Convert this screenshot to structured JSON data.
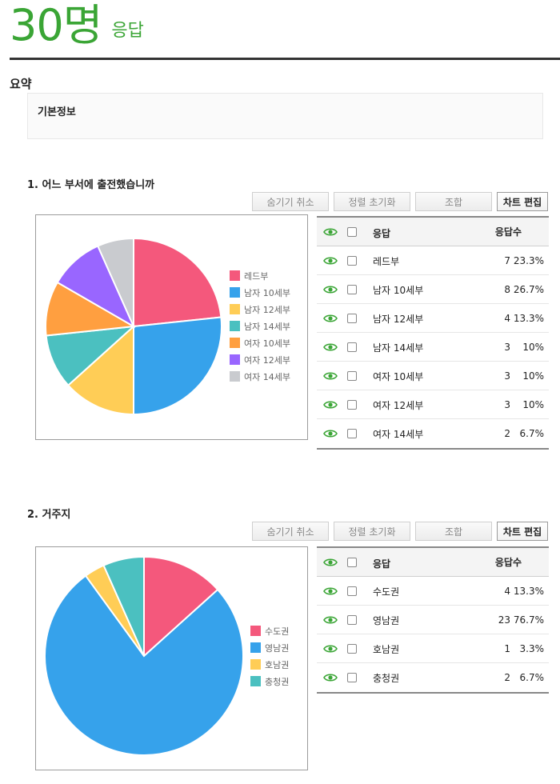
{
  "header": {
    "count": "30명",
    "unit": "응답"
  },
  "summary": {
    "title": "요약",
    "box_label": "기본정보"
  },
  "buttons": {
    "unhide": "숨기기 취소",
    "reset_sort": "정렬 초기화",
    "combine": "조합",
    "edit_chart": "차트 편집"
  },
  "table_headers": {
    "response": "응답",
    "count": "응답수"
  },
  "colors": {
    "accent": "#3aa535"
  },
  "questions": [
    {
      "title": "1. 어느 부서에 출전했습니까",
      "rows": [
        {
          "label": "레드부",
          "count": "7",
          "pct": "23.3%"
        },
        {
          "label": "남자 10세부",
          "count": "8",
          "pct": "26.7%"
        },
        {
          "label": "남자 12세부",
          "count": "4",
          "pct": "13.3%"
        },
        {
          "label": "남자 14세부",
          "count": "3",
          "pct": "10%"
        },
        {
          "label": "여자 10세부",
          "count": "3",
          "pct": "10%"
        },
        {
          "label": "여자 12세부",
          "count": "3",
          "pct": "10%"
        },
        {
          "label": "여자 14세부",
          "count": "2",
          "pct": "6.7%"
        }
      ]
    },
    {
      "title": "2. 거주지",
      "rows": [
        {
          "label": "수도권",
          "count": "4",
          "pct": "13.3%"
        },
        {
          "label": "영남권",
          "count": "23",
          "pct": "76.7%"
        },
        {
          "label": "호남권",
          "count": "1",
          "pct": "3.3%"
        },
        {
          "label": "충청권",
          "count": "2",
          "pct": "6.7%"
        }
      ]
    }
  ],
  "chart_data": [
    {
      "type": "pie",
      "categories": [
        "레드부",
        "남자 10세부",
        "남자 12세부",
        "남자 14세부",
        "여자 10세부",
        "여자 12세부",
        "여자 14세부"
      ],
      "values": [
        7,
        8,
        4,
        3,
        3,
        3,
        2
      ],
      "colors": [
        "#f4587c",
        "#36a2eb",
        "#ffcd56",
        "#4bc0c0",
        "#ff9f40",
        "#9966ff",
        "#c9cbcf"
      ],
      "legend": "right"
    },
    {
      "type": "pie",
      "categories": [
        "수도권",
        "영남권",
        "호남권",
        "충청권"
      ],
      "values": [
        4,
        23,
        1,
        2
      ],
      "colors": [
        "#f4587c",
        "#36a2eb",
        "#ffcd56",
        "#4bc0c0"
      ],
      "legend": "right"
    }
  ]
}
